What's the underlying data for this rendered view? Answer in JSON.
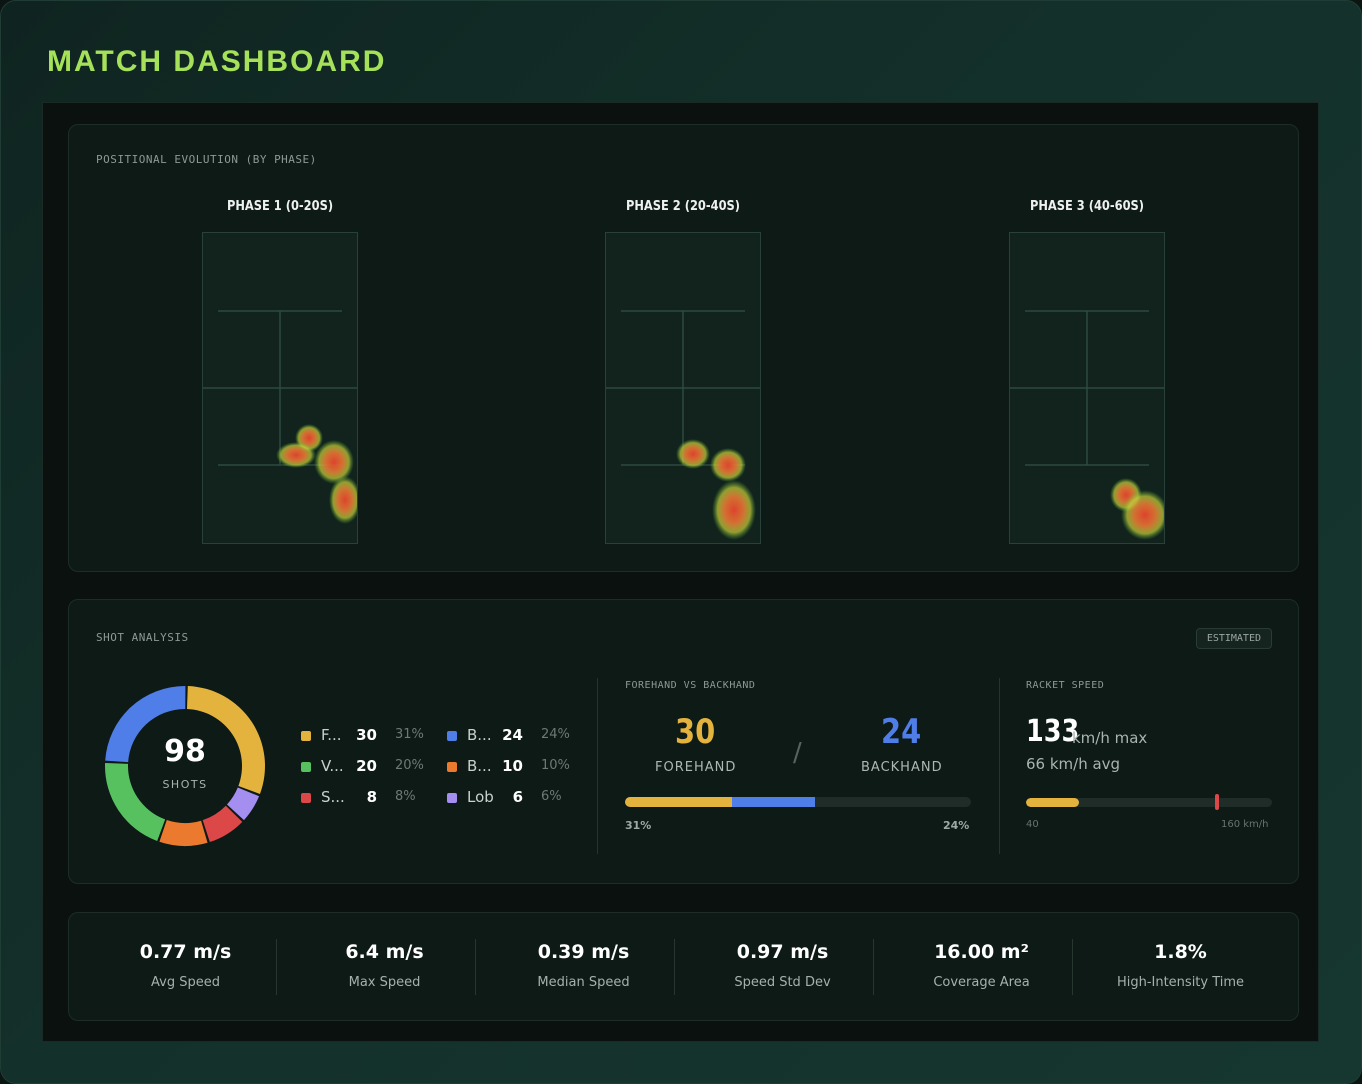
{
  "app": {
    "title": "MATCH DASHBOARD"
  },
  "positional": {
    "title": "POSITIONAL EVOLUTION (BY PHASE)",
    "phases": [
      {
        "label": "PHASE 1 (0-20S)"
      },
      {
        "label": "PHASE 2 (20-40S)"
      },
      {
        "label": "PHASE 3 (40-60S)"
      }
    ]
  },
  "shots": {
    "title": "SHOT ANALYSIS",
    "badge": "ESTIMATED",
    "total": "98",
    "total_caption": "SHOTS",
    "legend": [
      {
        "name": "F...",
        "count": "30",
        "pct": "31%",
        "color": "#e4b33e"
      },
      {
        "name": "V...",
        "count": "20",
        "pct": "20%",
        "color": "#57c160"
      },
      {
        "name": "S...",
        "count": "8",
        "pct": "8%",
        "color": "#dc4848"
      },
      {
        "name": "B...",
        "count": "24",
        "pct": "24%",
        "color": "#4f7ee8"
      },
      {
        "name": "B...",
        "count": "10",
        "pct": "10%",
        "color": "#ec7a2e"
      },
      {
        "name": "Lob",
        "count": "6",
        "pct": "6%",
        "color": "#a48ef0"
      }
    ],
    "donut_order": [
      0,
      5,
      2,
      4,
      1,
      3
    ],
    "fvb": {
      "title": "FOREHAND VS BACKHAND",
      "forehand": "30",
      "forehand_label": "FOREHAND",
      "backhand": "24",
      "backhand_label": "BACKHAND",
      "separator": "/",
      "forehand_pct": "31%",
      "backhand_pct": "24%",
      "forehand_share": 0.31,
      "backhand_share": 0.24,
      "forehand_color": "#e4b33e",
      "backhand_color": "#4f7ee8"
    },
    "racket": {
      "title": "RACKET SPEED",
      "max": "133",
      "max_unit": "km/h max",
      "avg": "66 km/h avg",
      "scale_min": "40",
      "scale_max": "160 km/h",
      "avg_value": 66,
      "max_value": 133,
      "range": [
        40,
        160
      ]
    }
  },
  "stats": [
    {
      "value": "0.77 m/s",
      "label": "Avg Speed"
    },
    {
      "value": "6.4 m/s",
      "label": "Max Speed"
    },
    {
      "value": "0.39 m/s",
      "label": "Median Speed"
    },
    {
      "value": "0.97 m/s",
      "label": "Speed Std Dev"
    },
    {
      "value": "16.00 m²",
      "label": "Coverage Area"
    },
    {
      "value": "1.8%",
      "label": "High-Intensity Time"
    }
  ],
  "colors": {
    "accent": "#a6e15a",
    "forehand": "#e4b33e",
    "backhand": "#4f7ee8",
    "racket_marker": "#dc4848"
  }
}
